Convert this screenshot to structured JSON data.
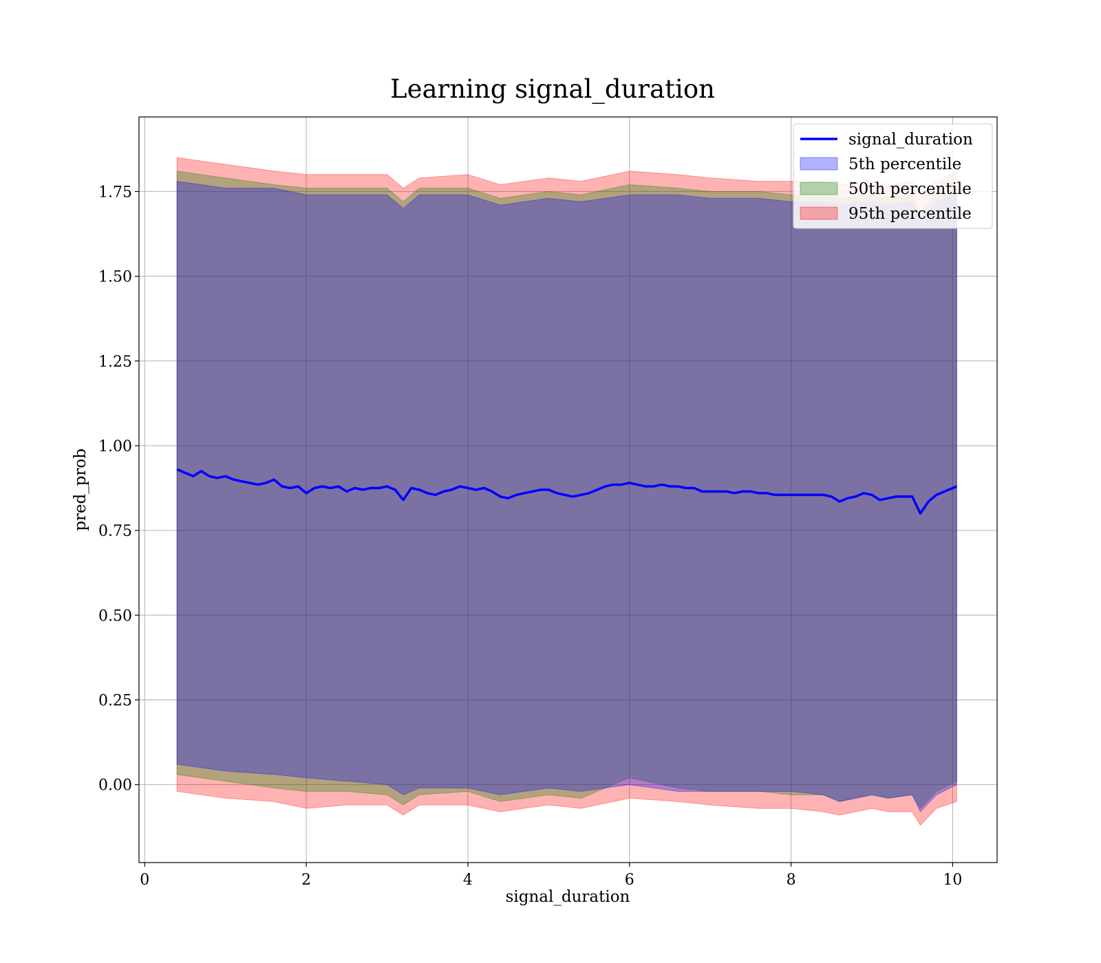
{
  "chart_data": {
    "type": "area",
    "title": "Learning signal_duration",
    "xlabel": "signal_duration",
    "ylabel": "pred_prob",
    "xlim": [
      -0.07,
      10.55
    ],
    "ylim": [
      -0.23,
      1.97
    ],
    "xticks": [
      0,
      2,
      4,
      6,
      8,
      10
    ],
    "xtick_labels": [
      "0",
      "2",
      "4",
      "6",
      "8",
      "10"
    ],
    "yticks": [
      0,
      0.25,
      0.5,
      0.75,
      1.0,
      1.25,
      1.5,
      1.75
    ],
    "ytick_labels": [
      "0.00",
      "0.25",
      "0.50",
      "0.75",
      "1.00",
      "1.25",
      "1.50",
      "1.75"
    ],
    "grid": true,
    "legend_position": "top-right",
    "colors": {
      "line": "#0000ff",
      "band_5th": "#0000ff",
      "band_50th": "#008000",
      "band_95th": "#ff0000"
    },
    "series": [
      {
        "name": "signal_duration",
        "kind": "line",
        "points": [
          [
            0.4,
            0.93
          ],
          [
            0.5,
            0.92
          ],
          [
            0.6,
            0.91
          ],
          [
            0.7,
            0.925
          ],
          [
            0.8,
            0.91
          ],
          [
            0.9,
            0.905
          ],
          [
            1.0,
            0.91
          ],
          [
            1.1,
            0.9
          ],
          [
            1.2,
            0.895
          ],
          [
            1.3,
            0.89
          ],
          [
            1.4,
            0.885
          ],
          [
            1.5,
            0.89
          ],
          [
            1.6,
            0.9
          ],
          [
            1.7,
            0.88
          ],
          [
            1.8,
            0.875
          ],
          [
            1.9,
            0.88
          ],
          [
            2.0,
            0.86
          ],
          [
            2.1,
            0.875
          ],
          [
            2.2,
            0.88
          ],
          [
            2.3,
            0.875
          ],
          [
            2.4,
            0.88
          ],
          [
            2.5,
            0.865
          ],
          [
            2.6,
            0.875
          ],
          [
            2.7,
            0.87
          ],
          [
            2.8,
            0.875
          ],
          [
            2.9,
            0.875
          ],
          [
            3.0,
            0.88
          ],
          [
            3.1,
            0.87
          ],
          [
            3.2,
            0.84
          ],
          [
            3.3,
            0.875
          ],
          [
            3.4,
            0.87
          ],
          [
            3.5,
            0.86
          ],
          [
            3.6,
            0.855
          ],
          [
            3.7,
            0.865
          ],
          [
            3.8,
            0.87
          ],
          [
            3.9,
            0.88
          ],
          [
            4.0,
            0.875
          ],
          [
            4.1,
            0.87
          ],
          [
            4.2,
            0.875
          ],
          [
            4.3,
            0.865
          ],
          [
            4.4,
            0.85
          ],
          [
            4.5,
            0.845
          ],
          [
            4.6,
            0.855
          ],
          [
            4.7,
            0.86
          ],
          [
            4.8,
            0.865
          ],
          [
            4.9,
            0.87
          ],
          [
            5.0,
            0.87
          ],
          [
            5.1,
            0.86
          ],
          [
            5.2,
            0.855
          ],
          [
            5.3,
            0.85
          ],
          [
            5.4,
            0.855
          ],
          [
            5.5,
            0.86
          ],
          [
            5.6,
            0.87
          ],
          [
            5.7,
            0.88
          ],
          [
            5.8,
            0.885
          ],
          [
            5.9,
            0.885
          ],
          [
            6.0,
            0.89
          ],
          [
            6.1,
            0.885
          ],
          [
            6.2,
            0.88
          ],
          [
            6.3,
            0.88
          ],
          [
            6.4,
            0.885
          ],
          [
            6.5,
            0.88
          ],
          [
            6.6,
            0.88
          ],
          [
            6.7,
            0.875
          ],
          [
            6.8,
            0.875
          ],
          [
            6.9,
            0.865
          ],
          [
            7.0,
            0.865
          ],
          [
            7.1,
            0.865
          ],
          [
            7.2,
            0.865
          ],
          [
            7.3,
            0.86
          ],
          [
            7.4,
            0.865
          ],
          [
            7.5,
            0.865
          ],
          [
            7.6,
            0.86
          ],
          [
            7.7,
            0.86
          ],
          [
            7.8,
            0.855
          ],
          [
            7.9,
            0.855
          ],
          [
            8.0,
            0.855
          ],
          [
            8.1,
            0.855
          ],
          [
            8.2,
            0.855
          ],
          [
            8.3,
            0.855
          ],
          [
            8.4,
            0.855
          ],
          [
            8.5,
            0.85
          ],
          [
            8.6,
            0.835
          ],
          [
            8.7,
            0.845
          ],
          [
            8.8,
            0.85
          ],
          [
            8.9,
            0.86
          ],
          [
            9.0,
            0.855
          ],
          [
            9.1,
            0.84
          ],
          [
            9.2,
            0.845
          ],
          [
            9.3,
            0.85
          ],
          [
            9.4,
            0.85
          ],
          [
            9.5,
            0.85
          ],
          [
            9.6,
            0.8
          ],
          [
            9.7,
            0.835
          ],
          [
            9.8,
            0.855
          ],
          [
            9.9,
            0.865
          ],
          [
            10.05,
            0.88
          ]
        ]
      },
      {
        "name": "5th percentile",
        "kind": "band",
        "x": [
          0.4,
          1.0,
          1.6,
          2.0,
          2.5,
          3.0,
          3.2,
          3.4,
          4.0,
          4.4,
          5.0,
          5.4,
          6.0,
          6.6,
          7.0,
          7.6,
          8.0,
          8.4,
          8.6,
          9.0,
          9.2,
          9.5,
          9.6,
          9.8,
          10.05
        ],
        "lower": [
          0.06,
          0.04,
          0.03,
          0.02,
          0.01,
          0.0,
          -0.03,
          -0.01,
          -0.01,
          -0.03,
          -0.01,
          -0.02,
          0.0,
          -0.02,
          -0.02,
          -0.02,
          -0.02,
          -0.03,
          -0.05,
          -0.03,
          -0.04,
          -0.03,
          -0.08,
          -0.03,
          0.0
        ],
        "upper": [
          1.78,
          1.76,
          1.76,
          1.74,
          1.74,
          1.74,
          1.7,
          1.74,
          1.74,
          1.71,
          1.73,
          1.72,
          1.74,
          1.74,
          1.73,
          1.73,
          1.72,
          1.72,
          1.71,
          1.72,
          1.71,
          1.72,
          1.67,
          1.72,
          1.74
        ]
      },
      {
        "name": "50th percentile",
        "kind": "band",
        "x": [
          0.4,
          1.0,
          1.6,
          2.0,
          2.5,
          3.0,
          3.2,
          3.4,
          4.0,
          4.4,
          5.0,
          5.4,
          6.0,
          6.6,
          7.0,
          7.6,
          8.0,
          8.4,
          8.6,
          9.0,
          9.2,
          9.5,
          9.6,
          9.8,
          10.05
        ],
        "lower": [
          0.03,
          0.01,
          -0.01,
          -0.02,
          -0.02,
          -0.03,
          -0.06,
          -0.03,
          -0.02,
          -0.05,
          -0.03,
          -0.04,
          0.02,
          -0.01,
          -0.02,
          -0.02,
          -0.03,
          -0.03,
          -0.05,
          -0.03,
          -0.04,
          -0.03,
          -0.07,
          -0.02,
          0.01
        ],
        "upper": [
          1.81,
          1.79,
          1.77,
          1.76,
          1.76,
          1.76,
          1.72,
          1.76,
          1.76,
          1.73,
          1.75,
          1.74,
          1.77,
          1.76,
          1.75,
          1.75,
          1.74,
          1.74,
          1.73,
          1.74,
          1.73,
          1.74,
          1.69,
          1.74,
          1.76
        ]
      },
      {
        "name": "95th percentile",
        "kind": "band",
        "x": [
          0.4,
          1.0,
          1.6,
          2.0,
          2.5,
          3.0,
          3.2,
          3.4,
          4.0,
          4.4,
          5.0,
          5.4,
          6.0,
          6.6,
          7.0,
          7.6,
          8.0,
          8.4,
          8.6,
          9.0,
          9.2,
          9.5,
          9.6,
          9.8,
          10.05
        ],
        "lower": [
          -0.02,
          -0.04,
          -0.05,
          -0.07,
          -0.06,
          -0.06,
          -0.09,
          -0.06,
          -0.06,
          -0.08,
          -0.06,
          -0.07,
          -0.04,
          -0.05,
          -0.06,
          -0.07,
          -0.07,
          -0.08,
          -0.09,
          -0.07,
          -0.08,
          -0.08,
          -0.12,
          -0.07,
          -0.05
        ],
        "upper": [
          1.85,
          1.83,
          1.81,
          1.8,
          1.8,
          1.8,
          1.76,
          1.79,
          1.8,
          1.77,
          1.79,
          1.78,
          1.81,
          1.8,
          1.79,
          1.78,
          1.78,
          1.78,
          1.77,
          1.78,
          1.77,
          1.78,
          1.74,
          1.78,
          1.81
        ]
      }
    ]
  }
}
